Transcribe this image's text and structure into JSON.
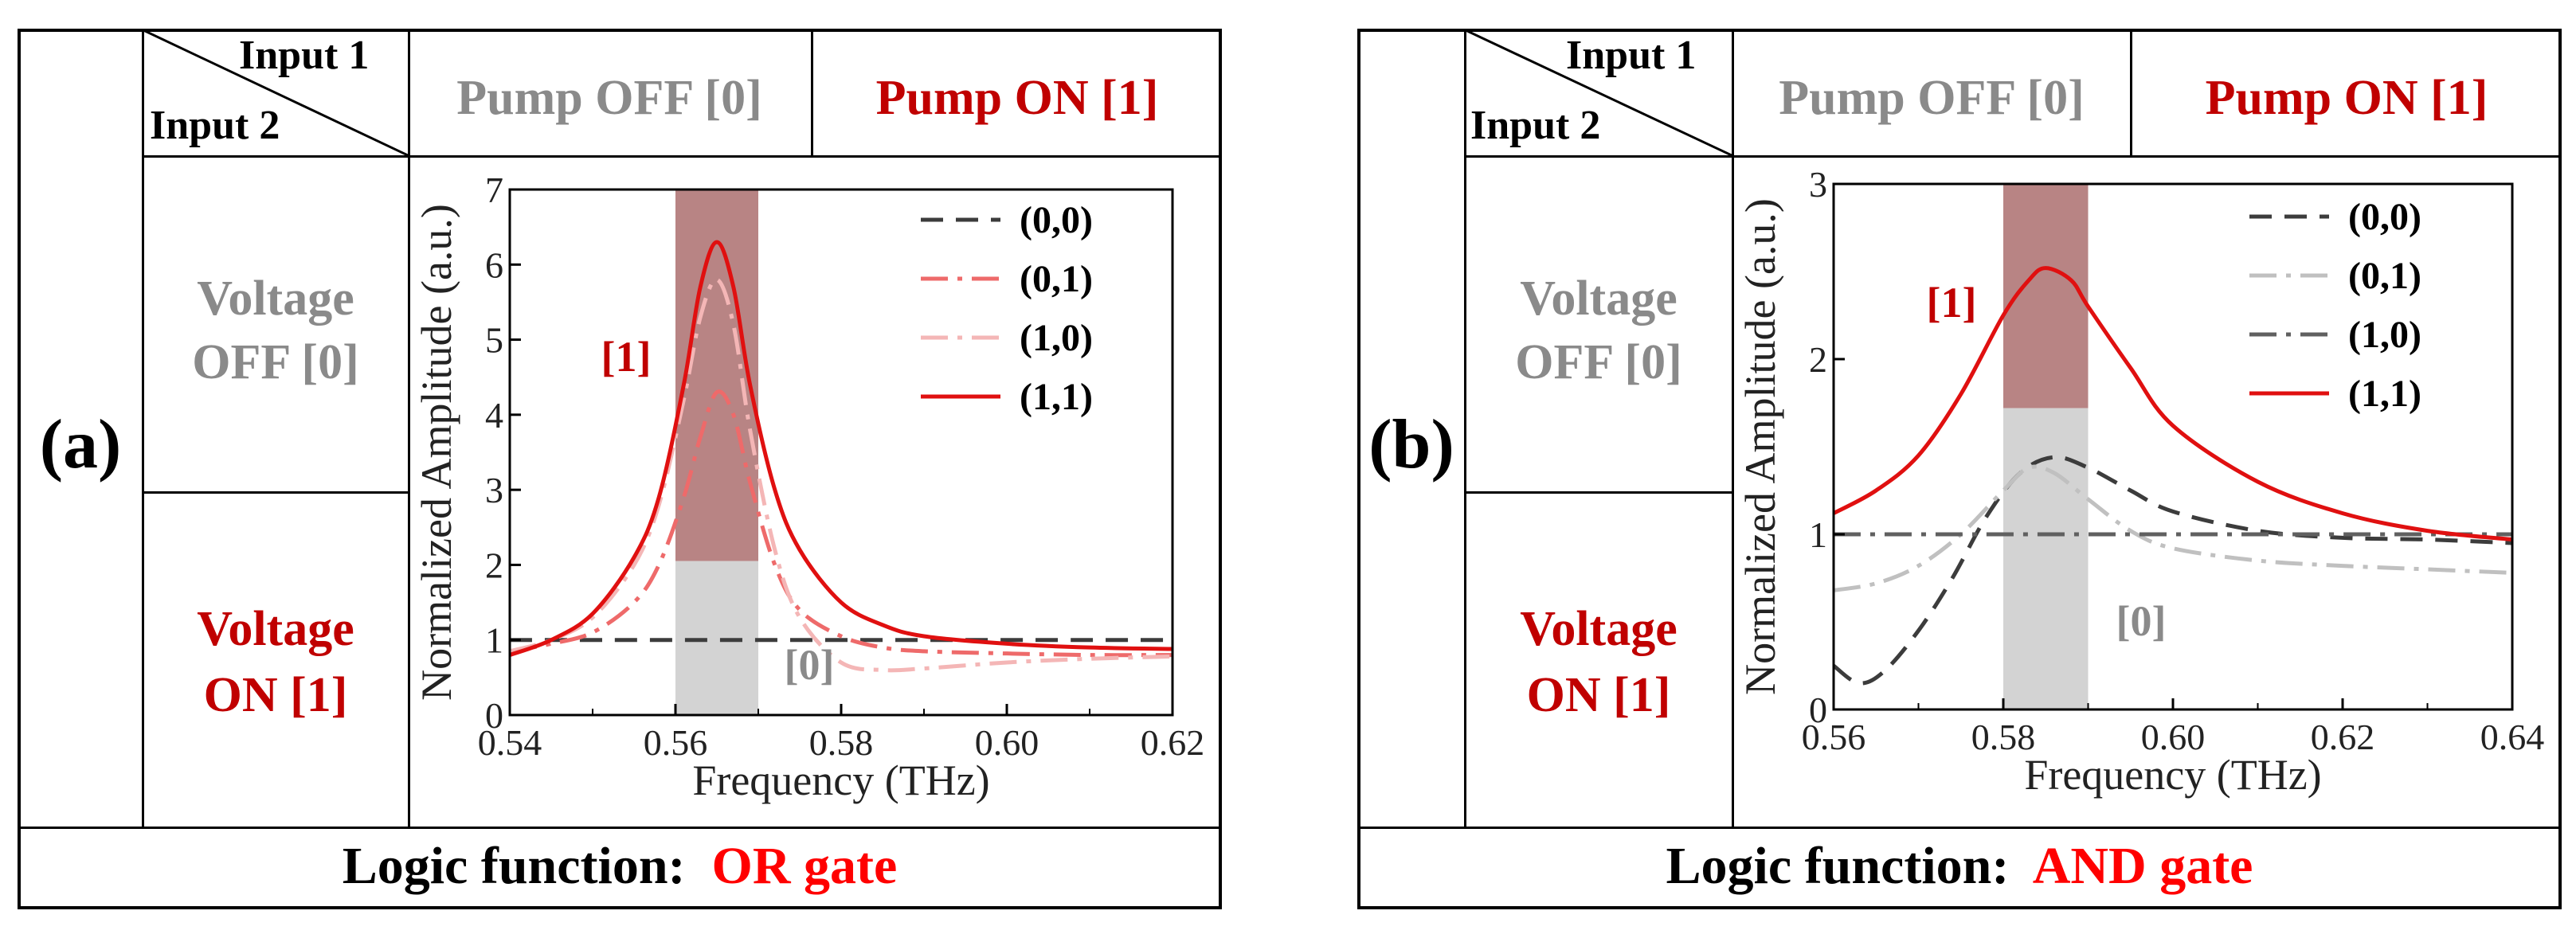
{
  "panels": [
    {
      "label": "(a)",
      "header": {
        "input1": "Input 1",
        "input2": "Input 2",
        "pump_off": "Pump OFF [0]",
        "pump_on": "Pump ON [1]"
      },
      "rows": {
        "voltage_off_line1": "Voltage",
        "voltage_off_line2": "OFF [0]",
        "voltage_on_line1": "Voltage",
        "voltage_on_line2": "ON [1]"
      },
      "footer": {
        "label": "Logic function:",
        "value": "OR gate"
      }
    },
    {
      "label": "(b)",
      "header": {
        "input1": "Input 1",
        "input2": "Input 2",
        "pump_off": "Pump OFF [0]",
        "pump_on": "Pump ON [1]"
      },
      "rows": {
        "voltage_off_line1": "Voltage",
        "voltage_off_line2": "OFF [0]",
        "voltage_on_line1": "Voltage",
        "voltage_on_line2": "ON [1]"
      },
      "footer": {
        "label": "Logic function:",
        "value": "AND gate"
      }
    }
  ],
  "colors": {
    "accent_red": "#ff0000",
    "dark_red": "#c00000",
    "grey_text": "#8a8a8a",
    "band_high": "#b88484",
    "band_low": "#d3d3d3"
  },
  "chart_data": [
    {
      "type": "line",
      "xlabel": "Frequency (THz)",
      "ylabel": "Normalized Amplitude (a.u.)",
      "xlim": [
        0.54,
        0.62
      ],
      "ylim": [
        0,
        7
      ],
      "xticks": [
        "0.54",
        "0.56",
        "0.58",
        "0.60",
        "0.62"
      ],
      "yticks": [
        "0",
        "1",
        "2",
        "3",
        "4",
        "5",
        "6",
        "7"
      ],
      "bands": [
        {
          "x0": 0.56,
          "x1": 0.57,
          "y0": 2.05,
          "y1": 7,
          "label": "[1]",
          "color": "#b88484"
        },
        {
          "x0": 0.56,
          "x1": 0.57,
          "y0": 0,
          "y1": 2.05,
          "label": "[0]",
          "color": "#d3d3d3"
        }
      ],
      "series": [
        {
          "name": "(0,0)",
          "style": "dash",
          "color": "#3c3c3c",
          "x": [
            0.54,
            0.62
          ],
          "y": [
            1.0,
            1.0
          ]
        },
        {
          "name": "(0,1)",
          "style": "dashdot",
          "color": "#ee6a6a",
          "x": [
            0.54,
            0.545,
            0.55,
            0.555,
            0.558,
            0.561,
            0.563,
            0.565,
            0.567,
            0.569,
            0.572,
            0.575,
            0.58,
            0.585,
            0.59,
            0.6,
            0.61,
            0.62
          ],
          "y": [
            0.85,
            0.95,
            1.1,
            1.5,
            2.0,
            2.9,
            3.7,
            4.3,
            4.0,
            3.1,
            2.0,
            1.4,
            1.05,
            0.9,
            0.85,
            0.82,
            0.8,
            0.8
          ]
        },
        {
          "name": "(1,0)",
          "style": "dashdot",
          "color": "#f4b6b6",
          "x": [
            0.54,
            0.545,
            0.55,
            0.555,
            0.558,
            0.561,
            0.563,
            0.565,
            0.567,
            0.569,
            0.572,
            0.575,
            0.58,
            0.585,
            0.59,
            0.6,
            0.61,
            0.62
          ],
          "y": [
            0.85,
            1.0,
            1.3,
            2.0,
            2.8,
            4.2,
            5.3,
            5.8,
            5.2,
            3.8,
            2.2,
            1.3,
            0.7,
            0.6,
            0.62,
            0.7,
            0.75,
            0.78
          ]
        },
        {
          "name": "(1,1)",
          "style": "solid",
          "color": "#e01010",
          "x": [
            0.54,
            0.545,
            0.55,
            0.555,
            0.558,
            0.561,
            0.563,
            0.565,
            0.567,
            0.569,
            0.572,
            0.575,
            0.58,
            0.585,
            0.59,
            0.6,
            0.61,
            0.62
          ],
          "y": [
            0.8,
            1.0,
            1.35,
            2.1,
            2.9,
            4.4,
            5.7,
            6.3,
            5.7,
            4.4,
            3.0,
            2.2,
            1.5,
            1.2,
            1.05,
            0.95,
            0.9,
            0.88
          ]
        }
      ],
      "legend": [
        "(0,0)",
        "(0,1)",
        "(1,0)",
        "(1,1)"
      ]
    },
    {
      "type": "line",
      "xlabel": "Frequency (THz)",
      "ylabel": "Normalized Amplitude (a.u.)",
      "xlim": [
        0.56,
        0.64
      ],
      "ylim": [
        0,
        3
      ],
      "xticks": [
        "0.56",
        "0.58",
        "0.60",
        "0.62",
        "0.64"
      ],
      "yticks": [
        "0",
        "1",
        "2",
        "3"
      ],
      "bands": [
        {
          "x0": 0.58,
          "x1": 0.59,
          "y0": 1.72,
          "y1": 3,
          "label": "[1]",
          "color": "#b88484"
        },
        {
          "x0": 0.58,
          "x1": 0.59,
          "y0": 0,
          "y1": 1.72,
          "label": "[0]",
          "color": "#d3d3d3"
        }
      ],
      "series": [
        {
          "name": "(0,0)",
          "style": "dash",
          "color": "#3c3c3c",
          "x": [
            0.56,
            0.563,
            0.566,
            0.57,
            0.574,
            0.578,
            0.582,
            0.586,
            0.59,
            0.595,
            0.6,
            0.61,
            0.62,
            0.63,
            0.64
          ],
          "y": [
            0.25,
            0.15,
            0.22,
            0.45,
            0.75,
            1.1,
            1.35,
            1.44,
            1.38,
            1.25,
            1.13,
            1.02,
            0.98,
            0.97,
            0.95
          ]
        },
        {
          "name": "(0,1)",
          "style": "dashdot",
          "color": "#c0c0c0",
          "x": [
            0.56,
            0.565,
            0.57,
            0.575,
            0.58,
            0.583,
            0.586,
            0.59,
            0.595,
            0.6,
            0.61,
            0.62,
            0.63,
            0.64
          ],
          "y": [
            0.68,
            0.72,
            0.82,
            1.0,
            1.25,
            1.38,
            1.35,
            1.2,
            1.02,
            0.92,
            0.85,
            0.82,
            0.8,
            0.78
          ]
        },
        {
          "name": "(1,0)",
          "style": "dashdot",
          "color": "#606060",
          "x": [
            0.56,
            0.64
          ],
          "y": [
            1.0,
            1.0
          ]
        },
        {
          "name": "(1,1)",
          "style": "solid",
          "color": "#e01010",
          "x": [
            0.56,
            0.565,
            0.57,
            0.575,
            0.58,
            0.583,
            0.585,
            0.588,
            0.59,
            0.595,
            0.6,
            0.61,
            0.62,
            0.63,
            0.64
          ],
          "y": [
            1.12,
            1.25,
            1.45,
            1.8,
            2.25,
            2.45,
            2.52,
            2.45,
            2.3,
            1.95,
            1.62,
            1.3,
            1.12,
            1.02,
            0.97
          ]
        }
      ],
      "legend": [
        "(0,0)",
        "(0,1)",
        "(1,0)",
        "(1,1)"
      ]
    }
  ]
}
